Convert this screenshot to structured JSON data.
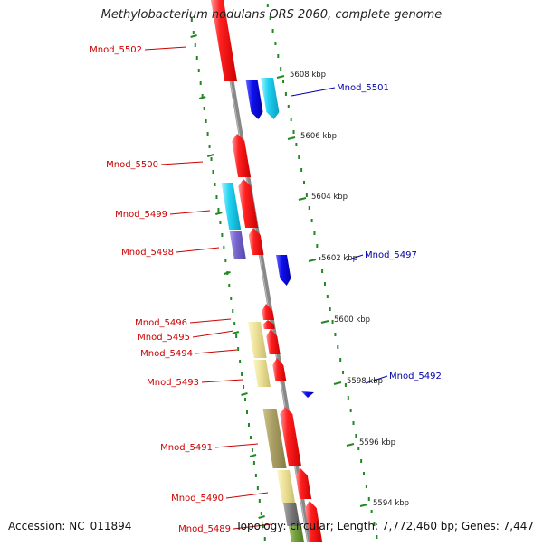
{
  "title": "Methylobacterium nodulans ORS 2060, complete genome",
  "accession": "Accession: NC_011894",
  "summary": "Topology: circular; Length: 7,772,460 bp; Genes: 7,447",
  "colors": {
    "forward": "#ee1111",
    "reverse": "#1111dd",
    "cyan": "#22ccee",
    "purple": "#7766cc",
    "khaki": "#eee399",
    "olive": "#aaa066",
    "gray": "#777777",
    "ruler": "#228822",
    "backbone": "#888888",
    "left_label": "#cc0000",
    "right_label": "#0000aa"
  },
  "ticks": [
    {
      "label": "5608 kbp"
    },
    {
      "label": "5606 kbp"
    },
    {
      "label": "5604 kbp"
    },
    {
      "label": "5602 kbp"
    },
    {
      "label": "5600 kbp"
    },
    {
      "label": "5598 kbp"
    },
    {
      "label": "5596 kbp"
    },
    {
      "label": "5594 kbp"
    }
  ],
  "genes_left": [
    {
      "label": "Mnod_5502"
    },
    {
      "label": "Mnod_5500"
    },
    {
      "label": "Mnod_5499"
    },
    {
      "label": "Mnod_5498"
    },
    {
      "label": "Mnod_5496"
    },
    {
      "label": "Mnod_5495"
    },
    {
      "label": "Mnod_5494"
    },
    {
      "label": "Mnod_5493"
    },
    {
      "label": "Mnod_5491"
    },
    {
      "label": "Mnod_5490"
    },
    {
      "label": "Mnod_5489"
    }
  ],
  "genes_right": [
    {
      "label": "Mnod_5501"
    },
    {
      "label": "Mnod_5497"
    },
    {
      "label": "Mnod_5492"
    }
  ]
}
